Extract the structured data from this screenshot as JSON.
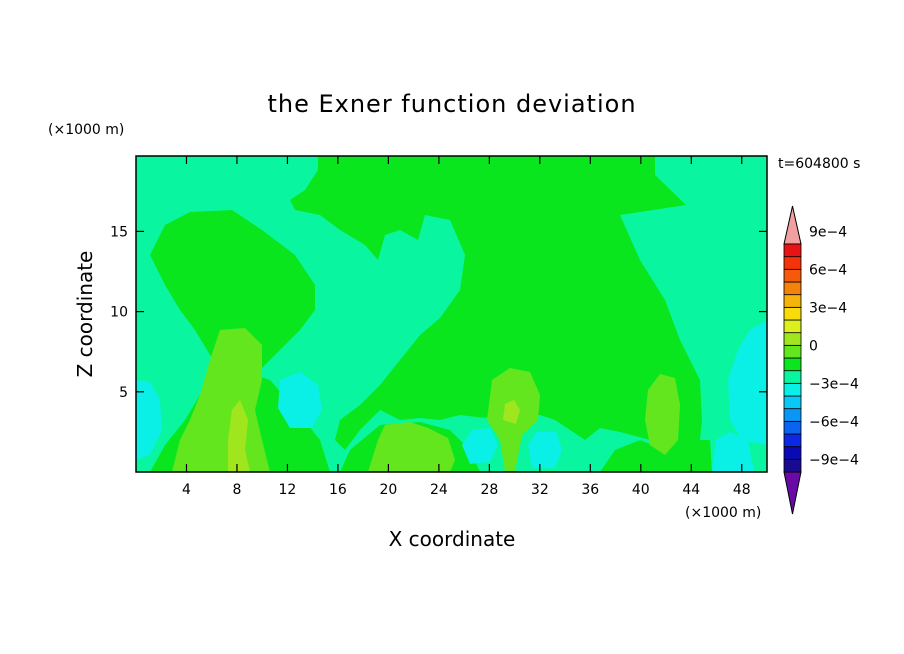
{
  "chart_data": {
    "type": "heatmap",
    "title": "the Exner function deviation",
    "xlabel": "X coordinate",
    "ylabel": "Z coordinate",
    "x_unit": "(×1000 m)",
    "y_unit": "(×1000 m)",
    "time_label": "t=604800 s",
    "xlim": [
      0,
      50
    ],
    "ylim": [
      0,
      19.7
    ],
    "x_ticks": [
      4,
      8,
      12,
      16,
      20,
      24,
      28,
      32,
      36,
      40,
      44,
      48
    ],
    "y_ticks": [
      5,
      10,
      15
    ],
    "colorbar": {
      "levels": [
        -0.0009,
        -0.0008,
        -0.0007,
        -0.0006,
        -0.0005,
        -0.0004,
        -0.0003,
        -0.0002,
        -0.0001,
        0,
        0.0001,
        0.0002,
        0.0003,
        0.0004,
        0.0005,
        0.0006,
        0.0007,
        0.0008,
        0.0009
      ],
      "tick_labels": [
        "−9e−4",
        "−6e−4",
        "−3e−4",
        "0",
        "3e−4",
        "6e−4",
        "9e−4"
      ],
      "tick_values": [
        -0.0009,
        -0.0006,
        -0.0003,
        0,
        0.0003,
        0.0006,
        0.0009
      ],
      "colors": [
        "#6a0aa6",
        "#1a0a90",
        "#0a0ab4",
        "#0a28e6",
        "#0a64f0",
        "#0a96f5",
        "#0ac8f5",
        "#0af0e6",
        "#0af5a0",
        "#0ae61e",
        "#64e61e",
        "#a0e61e",
        "#dcf01e",
        "#f5dc0a",
        "#f5b40a",
        "#f5820a",
        "#f55a0a",
        "#f5320a",
        "#e61414",
        "#f0a0a0"
      ]
    },
    "regions": [
      {
        "level": "-1e-4 to 0",
        "color": "#0af5a0",
        "role": "background"
      },
      {
        "level": "0 to 1e-4",
        "color": "#0ae61e",
        "role": "upper-center and upper-left cells"
      },
      {
        "level": "1e-4 to 2e-4",
        "color": "#64e61e",
        "role": "near-surface plumes at x≈6–9, 19–24, 28–31, 40–42"
      },
      {
        "level": "2e-4 to 3e-4",
        "color": "#a0e61e",
        "role": "plume cores at x≈8, 30"
      },
      {
        "level": "-2e-4 to -1e-4",
        "color": "#0af0e6",
        "role": "cold pockets at x≈0–2, 12–14, 27, 32, 48–50"
      }
    ]
  }
}
